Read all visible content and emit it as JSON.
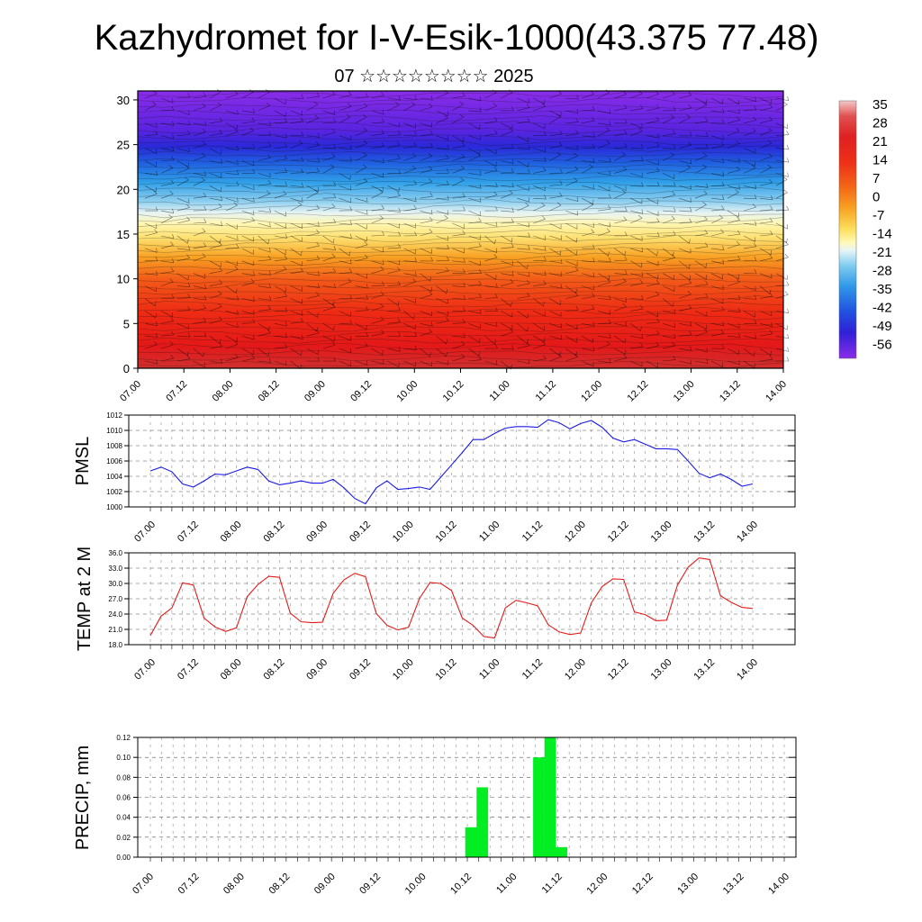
{
  "figure": {
    "title": "Kazhydromet for I-V-Esik-1000(43.375 77.48)",
    "subtitle": "07 ☆☆☆☆☆☆☆☆ 2025"
  },
  "time_ticks": [
    "07.00",
    "07.12",
    "08.00",
    "08.12",
    "09.00",
    "09.12",
    "10.00",
    "10.12",
    "11.00",
    "11.12",
    "12.00",
    "12.12",
    "13.00",
    "13.12",
    "14.00"
  ],
  "chart_data": [
    {
      "type": "heatmap",
      "name": "cross-section",
      "description_note": "",
      "x_ticks": [
        "07.00",
        "07.12",
        "08.00",
        "08.12",
        "09.00",
        "09.12",
        "10.00",
        "10.12",
        "11.00",
        "11.12",
        "12.00",
        "12.12",
        "13.00",
        "13.12",
        "14.00"
      ],
      "y_ticks": [
        0,
        5,
        10,
        15,
        20,
        25,
        30
      ],
      "ylim": [
        0,
        31
      ],
      "colorbar": {
        "labels": [
          "35",
          "28",
          "21",
          "14",
          "7",
          "0",
          "-7",
          "-14",
          "-21",
          "-28",
          "-35",
          "-42",
          "-49",
          "-56"
        ],
        "colors": [
          "#f0a0a0",
          "#e03030",
          "#e83020",
          "#f04a18",
          "#f47018",
          "#f8a020",
          "#fcd040",
          "#fff080",
          "#f0f8f0",
          "#a8dcf0",
          "#40a8e8",
          "#2060e0",
          "#3020d8",
          "#8020e8"
        ]
      },
      "value_profile": [
        {
          "height": 0,
          "value": 33
        },
        {
          "height": 5,
          "value": 24
        },
        {
          "height": 10,
          "value": 10
        },
        {
          "height": 14,
          "value": -5
        },
        {
          "height": 17,
          "value": -14
        },
        {
          "height": 20,
          "value": -30
        },
        {
          "height": 24,
          "value": -52
        },
        {
          "height": 31,
          "value": -58
        }
      ]
    },
    {
      "type": "line",
      "name": "PMSL",
      "ylabel": "PMSL",
      "ylim": [
        1000,
        1012
      ],
      "y_ticks": [
        "1000",
        "1002",
        "1004",
        "1006",
        "1008",
        "1010",
        "1012"
      ],
      "x_ticks": [
        "07.00",
        "07.12",
        "08.00",
        "08.12",
        "09.00",
        "09.12",
        "10.00",
        "10.12",
        "11.00",
        "11.12",
        "12.00",
        "12.12",
        "13.00",
        "13.12",
        "14.00"
      ],
      "color": "#1a1ae6",
      "values": [
        1004.7,
        1005.2,
        1004.6,
        1003.0,
        1002.6,
        1003.4,
        1004.3,
        1004.2,
        1004.7,
        1005.2,
        1004.9,
        1003.4,
        1002.9,
        1003.1,
        1003.4,
        1003.1,
        1003.1,
        1003.6,
        1002.5,
        1001.1,
        1000.4,
        1002.5,
        1003.4,
        1002.3,
        1002.4,
        1002.6,
        1002.3,
        1003.9,
        1005.5,
        1007.1,
        1008.8,
        1008.8,
        1009.6,
        1010.3,
        1010.5,
        1010.5,
        1010.4,
        1011.4,
        1011.0,
        1010.2,
        1010.9,
        1011.3,
        1010.4,
        1009.0,
        1008.5,
        1008.8,
        1008.2,
        1007.6,
        1007.6,
        1007.5,
        1006.0,
        1004.4,
        1003.8,
        1004.3,
        1003.6,
        1002.7,
        1003.0
      ]
    },
    {
      "type": "line",
      "name": "TEMP at 2 M",
      "ylabel": "TEMP at 2 M",
      "ylim": [
        18,
        36
      ],
      "y_ticks": [
        "18.0",
        "21.0",
        "24.0",
        "27.0",
        "30.0",
        "33.0",
        "36.0"
      ],
      "x_ticks": [
        "07.00",
        "07.12",
        "08.00",
        "08.12",
        "09.00",
        "09.12",
        "10.00",
        "10.12",
        "11.00",
        "11.12",
        "12.00",
        "12.12",
        "13.00",
        "13.12",
        "14.00"
      ],
      "color": "#e61a1a",
      "values": [
        19.8,
        23.6,
        25.2,
        30.1,
        29.7,
        23.2,
        21.5,
        20.6,
        21.3,
        27.4,
        29.8,
        31.4,
        31.2,
        24.2,
        22.5,
        22.3,
        22.4,
        28.1,
        30.7,
        32.0,
        31.3,
        24.1,
        21.8,
        20.9,
        21.4,
        27.0,
        30.2,
        30.0,
        28.6,
        23.2,
        21.8,
        19.6,
        19.3,
        25.2,
        26.7,
        26.2,
        25.6,
        21.9,
        20.5,
        20.0,
        20.3,
        26.2,
        29.4,
        30.9,
        30.8,
        24.4,
        23.9,
        22.7,
        22.8,
        29.7,
        33.2,
        35.0,
        34.7,
        27.6,
        26.3,
        25.3,
        25.1
      ]
    },
    {
      "type": "bar",
      "name": "PRECIP",
      "ylabel": "PRECIP, mm",
      "ylim": [
        0,
        0.12
      ],
      "y_ticks": [
        "0.00",
        "0.02",
        "0.04",
        "0.06",
        "0.08",
        "0.10",
        "0.12"
      ],
      "x_ticks": [
        "07.00",
        "07.12",
        "08.00",
        "08.12",
        "09.00",
        "09.12",
        "10.00",
        "10.12",
        "11.00",
        "11.12",
        "12.00",
        "12.12",
        "13.00",
        "13.12",
        "14.00"
      ],
      "color": "#00ee22",
      "values": [
        0,
        0,
        0,
        0,
        0,
        0,
        0,
        0,
        0,
        0,
        0,
        0,
        0,
        0,
        0,
        0,
        0,
        0,
        0,
        0,
        0,
        0,
        0,
        0,
        0,
        0,
        0,
        0.03,
        0.07,
        0,
        0,
        0,
        0,
        0.1,
        0.12,
        0.01,
        0,
        0,
        0,
        0,
        0,
        0,
        0,
        0,
        0,
        0,
        0,
        0,
        0,
        0,
        0,
        0,
        0,
        0,
        0,
        0
      ]
    }
  ]
}
